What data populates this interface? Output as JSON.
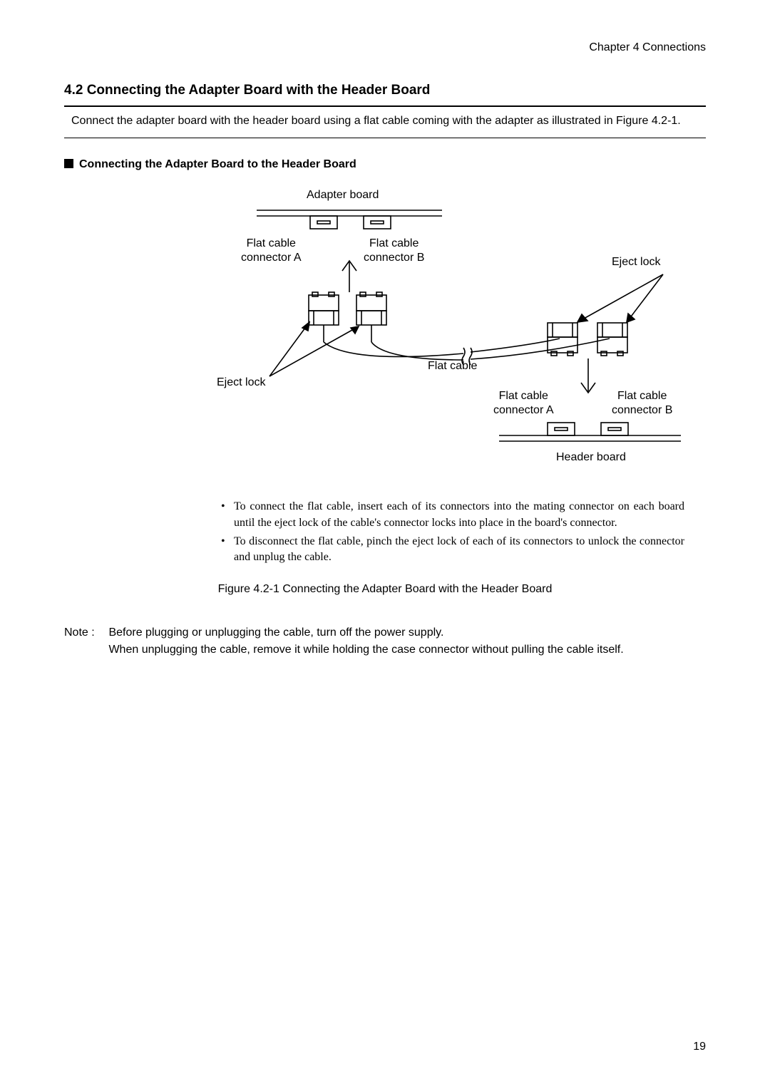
{
  "chapter_header": "Chapter 4 Connections",
  "section_title": "4.2 Connecting the Adapter Board with the Header Board",
  "intro_text": "Connect the adapter board with the header board using a flat cable coming with the adapter as illustrated in Figure 4.2-1.",
  "subhead": "Connecting the Adapter Board to the Header Board",
  "figure": {
    "adapter_board": "Adapter board",
    "flat_cable_conn_a": "Flat cable\nconnector A",
    "flat_cable_conn_b": "Flat cable\nconnector B",
    "eject_lock": "Eject lock",
    "flat_cable": "Flat cable",
    "header_board": "Header board",
    "colors": {
      "line": "#000000",
      "fill": "#ffffff"
    }
  },
  "bullets": [
    "To connect the flat cable, insert each of its connectors into the mating connector on each board until the eject lock of the cable's connector locks into place in the board's connector.",
    "To disconnect the flat cable, pinch the eject lock of each of its connectors to unlock the connector and unplug the cable."
  ],
  "figure_caption": "Figure 4.2-1 Connecting the Adapter Board with the Header Board",
  "note_label": "Note :",
  "note_body": "Before plugging or unplugging the cable, turn off the power supply.\nWhen unplugging the cable, remove it while holding the case connector without pulling the cable itself.",
  "page_number": "19"
}
